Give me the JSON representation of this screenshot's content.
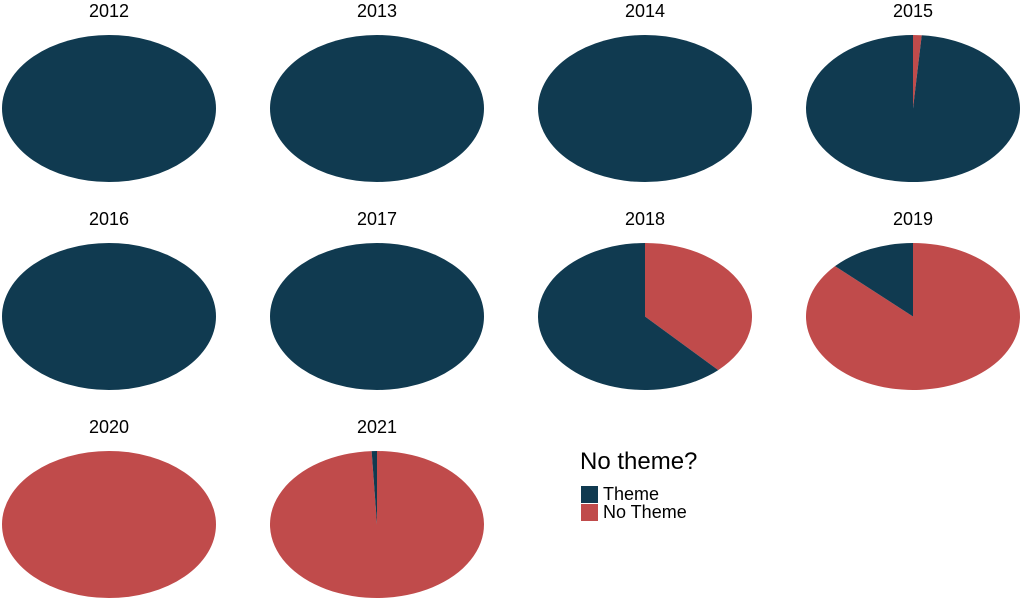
{
  "chart_data": {
    "type": "pie",
    "facet_by": "year",
    "title": "",
    "legend_position": "bottom right of grid",
    "slice_order": [
      "no_theme",
      "theme"
    ],
    "slice_start": "12 o'clock, clockwise",
    "colors": {
      "theme": "#103a50",
      "no_theme": "#c04b4b"
    },
    "legend": {
      "title": "No theme?",
      "entries": [
        {
          "label": "Theme",
          "color": "#103a50"
        },
        {
          "label": "No Theme",
          "color": "#c04b4b"
        }
      ]
    },
    "pies": [
      {
        "year": "2012",
        "theme": 1.0,
        "no_theme": 0.0
      },
      {
        "year": "2013",
        "theme": 1.0,
        "no_theme": 0.0
      },
      {
        "year": "2014",
        "theme": 1.0,
        "no_theme": 0.0
      },
      {
        "year": "2015",
        "theme": 0.987,
        "no_theme": 0.013
      },
      {
        "year": "2016",
        "theme": 1.0,
        "no_theme": 0.0
      },
      {
        "year": "2017",
        "theme": 1.0,
        "no_theme": 0.0
      },
      {
        "year": "2018",
        "theme": 0.62,
        "no_theme": 0.38
      },
      {
        "year": "2019",
        "theme": 0.13,
        "no_theme": 0.87
      },
      {
        "year": "2020",
        "theme": 0.0,
        "no_theme": 1.0
      },
      {
        "year": "2021",
        "theme": 0.008,
        "no_theme": 0.992
      }
    ]
  }
}
